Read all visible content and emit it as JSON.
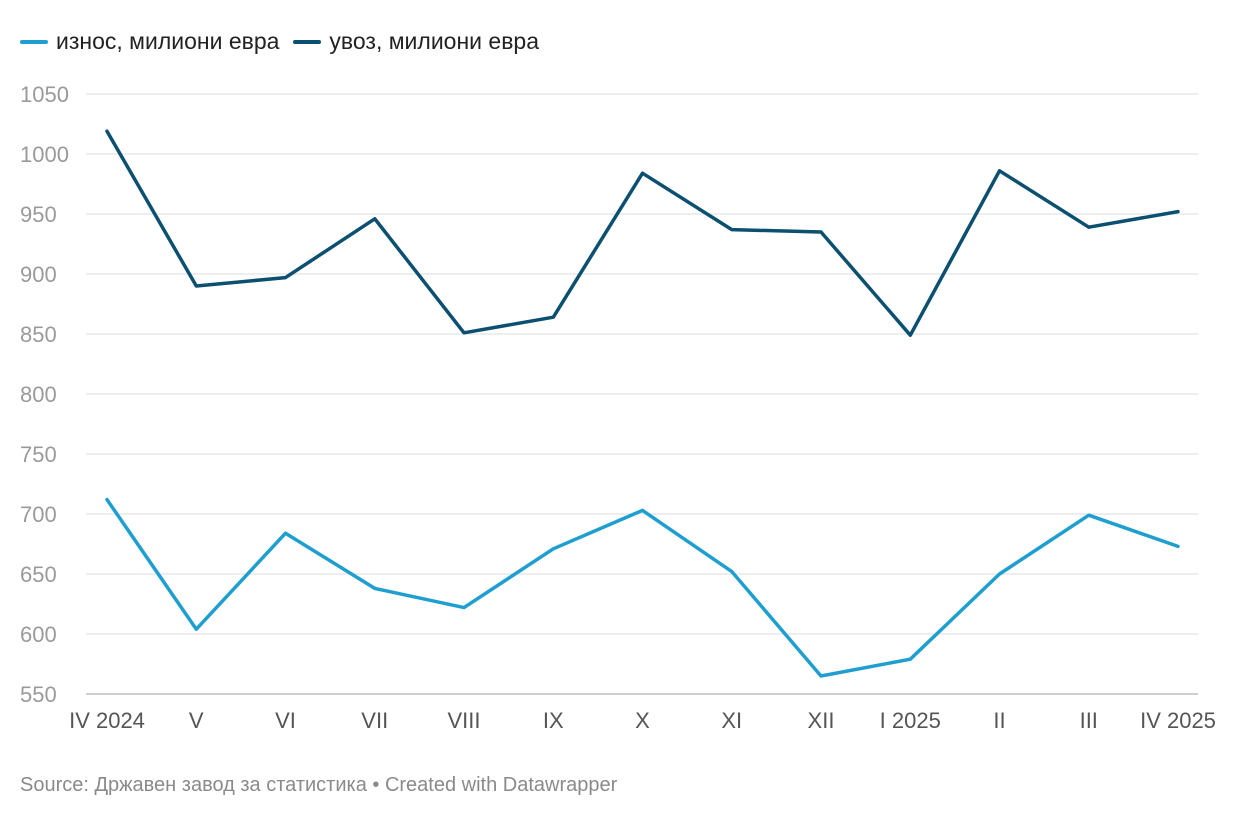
{
  "chart_data": {
    "type": "line",
    "x": [
      "IV 2024",
      "V",
      "VI",
      "VII",
      "VIII",
      "IX",
      "X",
      "XI",
      "XII",
      "I 2025",
      "II",
      "III",
      "IV 2025"
    ],
    "series": [
      {
        "name": "износ, милиони евра",
        "color": "#1f9fcf",
        "values": [
          712,
          604,
          684,
          638,
          622,
          671,
          703,
          652,
          565,
          579,
          650,
          699,
          673
        ]
      },
      {
        "name": "увоз, милиони евра",
        "color": "#0b4f71",
        "values": [
          1019,
          890,
          897,
          946,
          851,
          864,
          984,
          937,
          935,
          849,
          986,
          939,
          952
        ]
      }
    ],
    "yticks": [
      550,
      600,
      650,
      700,
      750,
      800,
      850,
      900,
      950,
      1000,
      1050
    ],
    "ylim": [
      550,
      1050
    ],
    "grid": true,
    "legend_position": "top-left"
  },
  "footer": {
    "source": "Source: Државен завод за статистика • Created with Datawrapper"
  }
}
